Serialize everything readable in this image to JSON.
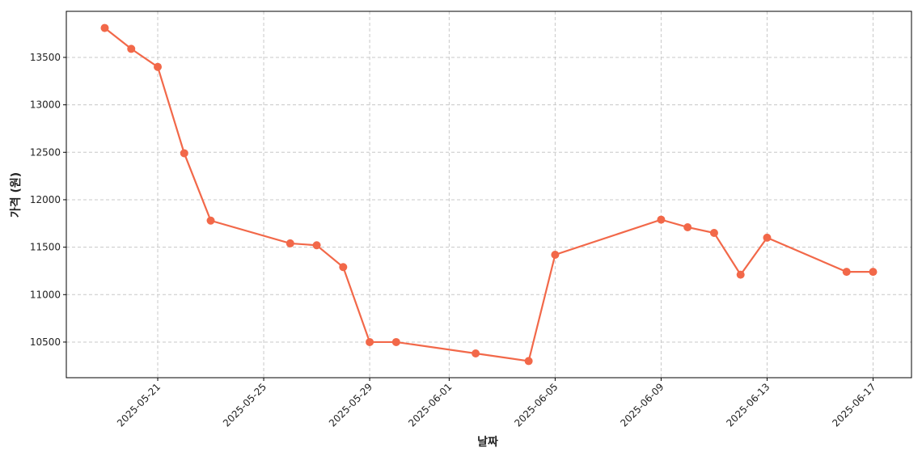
{
  "chart_data": {
    "type": "line",
    "x_label": "날짜",
    "y_label": "가격 (원)",
    "x": [
      "2025-05-19",
      "2025-05-20",
      "2025-05-21",
      "2025-05-22",
      "2025-05-23",
      "2025-05-26",
      "2025-05-27",
      "2025-05-28",
      "2025-05-29",
      "2025-05-30",
      "2025-06-02",
      "2025-06-04",
      "2025-06-05",
      "2025-06-09",
      "2025-06-10",
      "2025-06-11",
      "2025-06-12",
      "2025-06-13",
      "2025-06-16",
      "2025-06-17"
    ],
    "series": [
      {
        "name": "가격",
        "color": "#f26849",
        "values": [
          13810,
          13590,
          13400,
          12490,
          11780,
          11540,
          11520,
          11290,
          10500,
          10500,
          10380,
          10300,
          11420,
          11790,
          11710,
          11650,
          11210,
          11600,
          11240,
          11240
        ]
      }
    ],
    "xlim": [
      "2025-05-17T13:12:00",
      "2025-06-18T10:48:00"
    ],
    "xticks": [
      "2025-05-21",
      "2025-05-25",
      "2025-05-29",
      "2025-06-01",
      "2025-06-05",
      "2025-06-09",
      "2025-06-13",
      "2025-06-17"
    ],
    "ylim": [
      10124.5,
      13985.5
    ],
    "yticks": [
      10500,
      11000,
      11500,
      12000,
      12500,
      13000,
      13500
    ],
    "grid": true
  }
}
